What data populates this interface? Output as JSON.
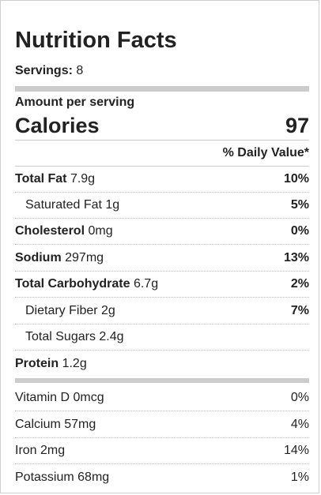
{
  "title": "Nutrition Facts",
  "servings": {
    "label": "Servings:",
    "value": "8"
  },
  "amount_per_serving": "Amount per serving",
  "calories": {
    "label": "Calories",
    "value": "97"
  },
  "daily_value_header": "% Daily Value*",
  "nutrients": [
    {
      "name": "Total Fat",
      "amount": "7.9g",
      "dv": "10%"
    },
    {
      "name": "Saturated Fat",
      "amount": "1g",
      "dv": "5%"
    },
    {
      "name": "Cholesterol",
      "amount": "0mg",
      "dv": "0%"
    },
    {
      "name": "Sodium",
      "amount": "297mg",
      "dv": "13%"
    },
    {
      "name": "Total Carbohydrate",
      "amount": "6.7g",
      "dv": "2%"
    },
    {
      "name": "Dietary Fiber",
      "amount": "2g",
      "dv": "7%"
    },
    {
      "name": "Total Sugars",
      "amount": "2.4g",
      "dv": ""
    },
    {
      "name": "Protein",
      "amount": "1.2g",
      "dv": ""
    }
  ],
  "vitamins": [
    {
      "name": "Vitamin D",
      "amount": "0mcg",
      "dv": "0%"
    },
    {
      "name": "Calcium",
      "amount": "57mg",
      "dv": "4%"
    },
    {
      "name": "Iron",
      "amount": "2mg",
      "dv": "14%"
    },
    {
      "name": "Potassium",
      "amount": "68mg",
      "dv": "1%"
    }
  ]
}
